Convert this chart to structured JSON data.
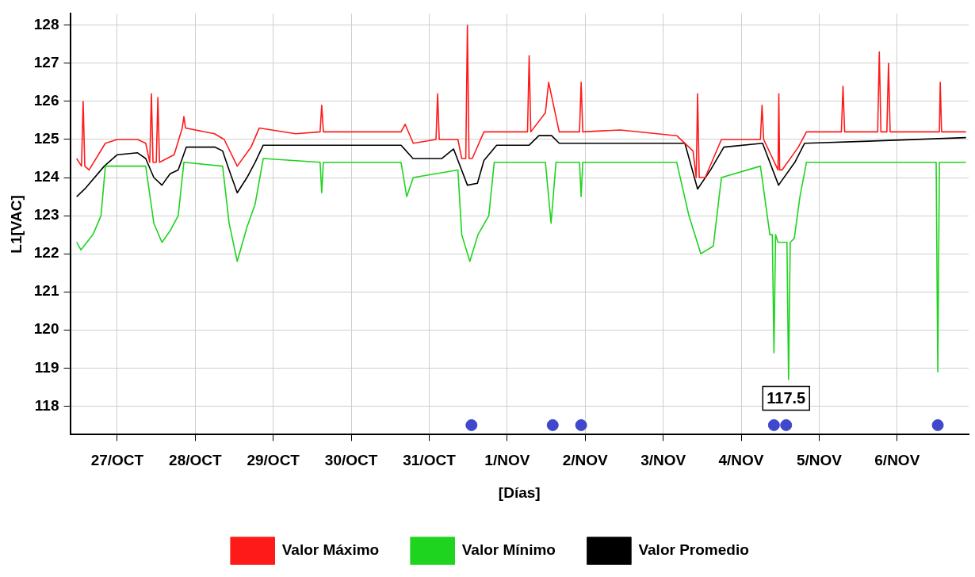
{
  "chart_data": {
    "type": "line",
    "ylabel": "L1[VAC]",
    "xlabel": "[Días]",
    "xlim": [
      "--10-26T09:30",
      "--11-06T22:00"
    ],
    "ylim": [
      117.25,
      128.3
    ],
    "xticks": [
      {
        "value": "--10-27",
        "label": "27/OCT"
      },
      {
        "value": "--10-28",
        "label": "28/OCT"
      },
      {
        "value": "--10-29",
        "label": "29/OCT"
      },
      {
        "value": "--10-30",
        "label": "30/OCT"
      },
      {
        "value": "--10-31",
        "label": "31/OCT"
      },
      {
        "value": "--11-01",
        "label": "1/NOV"
      },
      {
        "value": "--11-02",
        "label": "2/NOV"
      },
      {
        "value": "--11-03",
        "label": "3/NOV"
      },
      {
        "value": "--11-04",
        "label": "4/NOV"
      },
      {
        "value": "--11-05",
        "label": "5/NOV"
      },
      {
        "value": "--11-06",
        "label": "6/NOV"
      }
    ],
    "yticks": [
      118,
      119,
      120,
      121,
      122,
      123,
      124,
      125,
      126,
      127,
      128
    ],
    "grid": true,
    "legend": "bottom",
    "marker": "none",
    "line_style": "solid",
    "annotations": [
      {
        "text": "117.5",
        "x": "--11-04T13:50",
        "y": 117.5
      }
    ],
    "series": [
      {
        "name": "Valor Máximo",
        "color": "#ff1a1a",
        "x": [
          "--10-26T11:30",
          "--10-26T13:00",
          "--10-26T13:30",
          "--10-26T14:00",
          "--10-26T15:20",
          "--10-26T20:20",
          "--10-27T00:00",
          "--10-27T06:15",
          "--10-27T08:45",
          "--10-27T10:00",
          "--10-27T10:30",
          "--10-27T11:00",
          "--10-27T12:00",
          "--10-27T12:30",
          "--10-27T13:00",
          "--10-27T17:30",
          "--10-27T20:00",
          "--10-27T20:30",
          "--10-27T21:00",
          "--10-28T05:55",
          "--10-28T08:55",
          "--10-28T12:55",
          "--10-28T17:10",
          "--10-28T19:40",
          "--10-29T06:55",
          "--10-29T14:25",
          "--10-29T14:55",
          "--10-29T15:25",
          "--10-30T15:20",
          "--10-30T16:35",
          "--10-30T19:05",
          "--10-31T02:05",
          "--10-31T02:35",
          "--10-31T03:05",
          "--10-31T08:50",
          "--10-31T10:00",
          "--10-31T11:15",
          "--10-31T11:45",
          "--10-31T12:15",
          "--10-31T13:15",
          "--10-31T16:50",
          "--10-31T20:00",
          "--11-01T06:15",
          "--11-01T06:45",
          "--11-01T07:15",
          "--11-01T11:45",
          "--11-01T12:45",
          "--11-01T14:45",
          "--11-01T16:00",
          "--11-01T22:15",
          "--11-01T22:45",
          "--11-01T23:15",
          "--11-02T10:45",
          "--11-03T04:10",
          "--11-03T09:10",
          "--11-03T10:10",
          "--11-03T10:35",
          "--11-03T11:05",
          "--11-03T12:55",
          "--11-03T17:55",
          "--11-04T05:55",
          "--11-04T06:25",
          "--11-04T06:55",
          "--11-04T11:20",
          "--11-04T11:35",
          "--11-04T11:50",
          "--11-04T12:35",
          "--11-04T17:35",
          "--11-04T20:05",
          "--11-05T06:50",
          "--11-05T07:20",
          "--11-05T07:50",
          "--11-05T18:00",
          "--11-05T18:30",
          "--11-05T19:00",
          "--11-05T20:50",
          "--11-05T21:20",
          "--11-05T21:50",
          "--11-06T13:00",
          "--11-06T13:15",
          "--11-06T13:40",
          "--11-06T21:10"
        ],
        "values": [
          124.5,
          124.3,
          126.0,
          124.3,
          124.2,
          124.9,
          125.0,
          125.0,
          124.9,
          124.4,
          126.2,
          124.4,
          124.4,
          126.1,
          124.4,
          124.6,
          125.3,
          125.6,
          125.3,
          125.15,
          125.0,
          124.3,
          124.8,
          125.3,
          125.15,
          125.2,
          125.9,
          125.2,
          125.2,
          125.4,
          124.9,
          125.0,
          126.2,
          125.0,
          125.0,
          124.5,
          124.5,
          128.0,
          124.5,
          124.5,
          125.2,
          125.2,
          125.2,
          127.2,
          125.2,
          125.7,
          126.5,
          125.7,
          125.2,
          125.2,
          126.5,
          125.2,
          125.25,
          125.1,
          124.7,
          124.0,
          126.2,
          124.0,
          124.0,
          125.0,
          125.0,
          125.9,
          125.0,
          124.2,
          126.2,
          124.2,
          124.2,
          124.8,
          125.2,
          125.2,
          126.4,
          125.2,
          125.2,
          127.3,
          125.2,
          125.2,
          127.0,
          125.2,
          125.2,
          126.5,
          125.2,
          125.2
        ]
      },
      {
        "name": "Valor Mínimo",
        "color": "#1ed41e",
        "x": [
          "--10-26T11:30",
          "--10-26T12:50",
          "--10-26T16:30",
          "--10-26T19:00",
          "--10-26T20:20",
          "--10-27T00:00",
          "--10-27T08:45",
          "--10-27T11:15",
          "--10-27T13:45",
          "--10-27T16:15",
          "--10-27T18:45",
          "--10-27T20:30",
          "--10-28T08:25",
          "--10-28T10:25",
          "--10-28T12:55",
          "--10-28T15:55",
          "--10-28T18:25",
          "--10-28T20:55",
          "--10-29T14:25",
          "--10-29T14:55",
          "--10-29T15:25",
          "--10-30T15:20",
          "--10-30T17:05",
          "--10-30T19:05",
          "--10-31T08:50",
          "--10-31T10:00",
          "--10-31T12:30",
          "--10-31T15:00",
          "--10-31T18:20",
          "--10-31T20:00",
          "--11-01T11:45",
          "--11-01T13:30",
          "--11-01T15:00",
          "--11-01T22:15",
          "--11-01T22:45",
          "--11-01T23:15",
          "--11-03T04:10",
          "--11-03T07:55",
          "--11-03T11:35",
          "--11-03T15:25",
          "--11-03T17:55",
          "--11-04T05:55",
          "--11-04T08:50",
          "--11-04T09:35",
          "--11-04T10:05",
          "--11-04T10:35",
          "--11-04T11:20",
          "--11-04T14:05",
          "--11-04T14:35",
          "--11-04T15:05",
          "--11-04T16:20",
          "--11-04T18:05",
          "--11-04T20:05",
          "--11-06T12:00",
          "--11-06T12:30",
          "--11-06T13:00",
          "--11-06T21:10"
        ],
        "values": [
          122.3,
          122.1,
          122.5,
          123.0,
          124.3,
          124.3,
          124.3,
          122.8,
          122.3,
          122.6,
          123.0,
          124.4,
          124.3,
          122.8,
          121.8,
          122.7,
          123.3,
          124.5,
          124.4,
          123.6,
          124.4,
          124.4,
          123.5,
          124.0,
          124.2,
          122.5,
          121.8,
          122.5,
          123.0,
          124.4,
          124.4,
          122.8,
          124.4,
          124.4,
          123.5,
          124.4,
          124.4,
          123.0,
          122.0,
          122.2,
          124.0,
          124.3,
          122.5,
          122.5,
          119.4,
          122.5,
          122.3,
          122.3,
          118.7,
          122.3,
          122.4,
          123.5,
          124.4,
          124.4,
          118.9,
          124.4,
          124.4
        ]
      },
      {
        "name": "Valor Promedio",
        "color": "#000000",
        "x": [
          "--10-26T11:30",
          "--10-26T14:00",
          "--10-26T20:00",
          "--10-27T00:00",
          "--10-27T06:15",
          "--10-27T08:45",
          "--10-27T11:15",
          "--10-27T13:45",
          "--10-27T16:15",
          "--10-27T18:45",
          "--10-27T21:15",
          "--10-28T06:00",
          "--10-28T08:25",
          "--10-28T10:25",
          "--10-28T12:55",
          "--10-28T15:55",
          "--10-28T18:25",
          "--10-28T20:55",
          "--10-30T15:20",
          "--10-30T19:00",
          "--10-31T03:50",
          "--10-31T07:30",
          "--10-31T11:45",
          "--10-31T14:50",
          "--10-31T16:50",
          "--10-31T20:45",
          "--11-01T06:45",
          "--11-01T09:45",
          "--11-01T13:40",
          "--11-01T16:00",
          "--11-03T06:40",
          "--11-03T10:35",
          "--11-03T14:35",
          "--11-03T18:40",
          "--11-04T06:35",
          "--11-04T11:30",
          "--11-04T16:30",
          "--11-04T19:30",
          "--11-05T13:25",
          "--11-06T21:10"
        ],
        "values": [
          123.5,
          123.7,
          124.3,
          124.6,
          124.65,
          124.5,
          124.0,
          123.8,
          124.1,
          124.2,
          124.8,
          124.8,
          124.7,
          124.2,
          123.6,
          124.0,
          124.4,
          124.85,
          124.85,
          124.5,
          124.5,
          124.75,
          123.8,
          123.85,
          124.45,
          124.85,
          124.85,
          125.1,
          125.1,
          124.9,
          124.9,
          123.7,
          124.2,
          124.8,
          124.9,
          123.8,
          124.4,
          124.9,
          124.95,
          125.05
        ]
      },
      {
        "type": "scatter",
        "marker": "circle",
        "color": "#3f48cc",
        "x": [
          "--10-31T13:00",
          "--11-01T14:00",
          "--11-01T22:45",
          "--11-04T10:05",
          "--11-04T13:50",
          "--11-06T12:30"
        ],
        "values": [
          117.5,
          117.5,
          117.5,
          117.5,
          117.5,
          117.5
        ]
      }
    ]
  }
}
